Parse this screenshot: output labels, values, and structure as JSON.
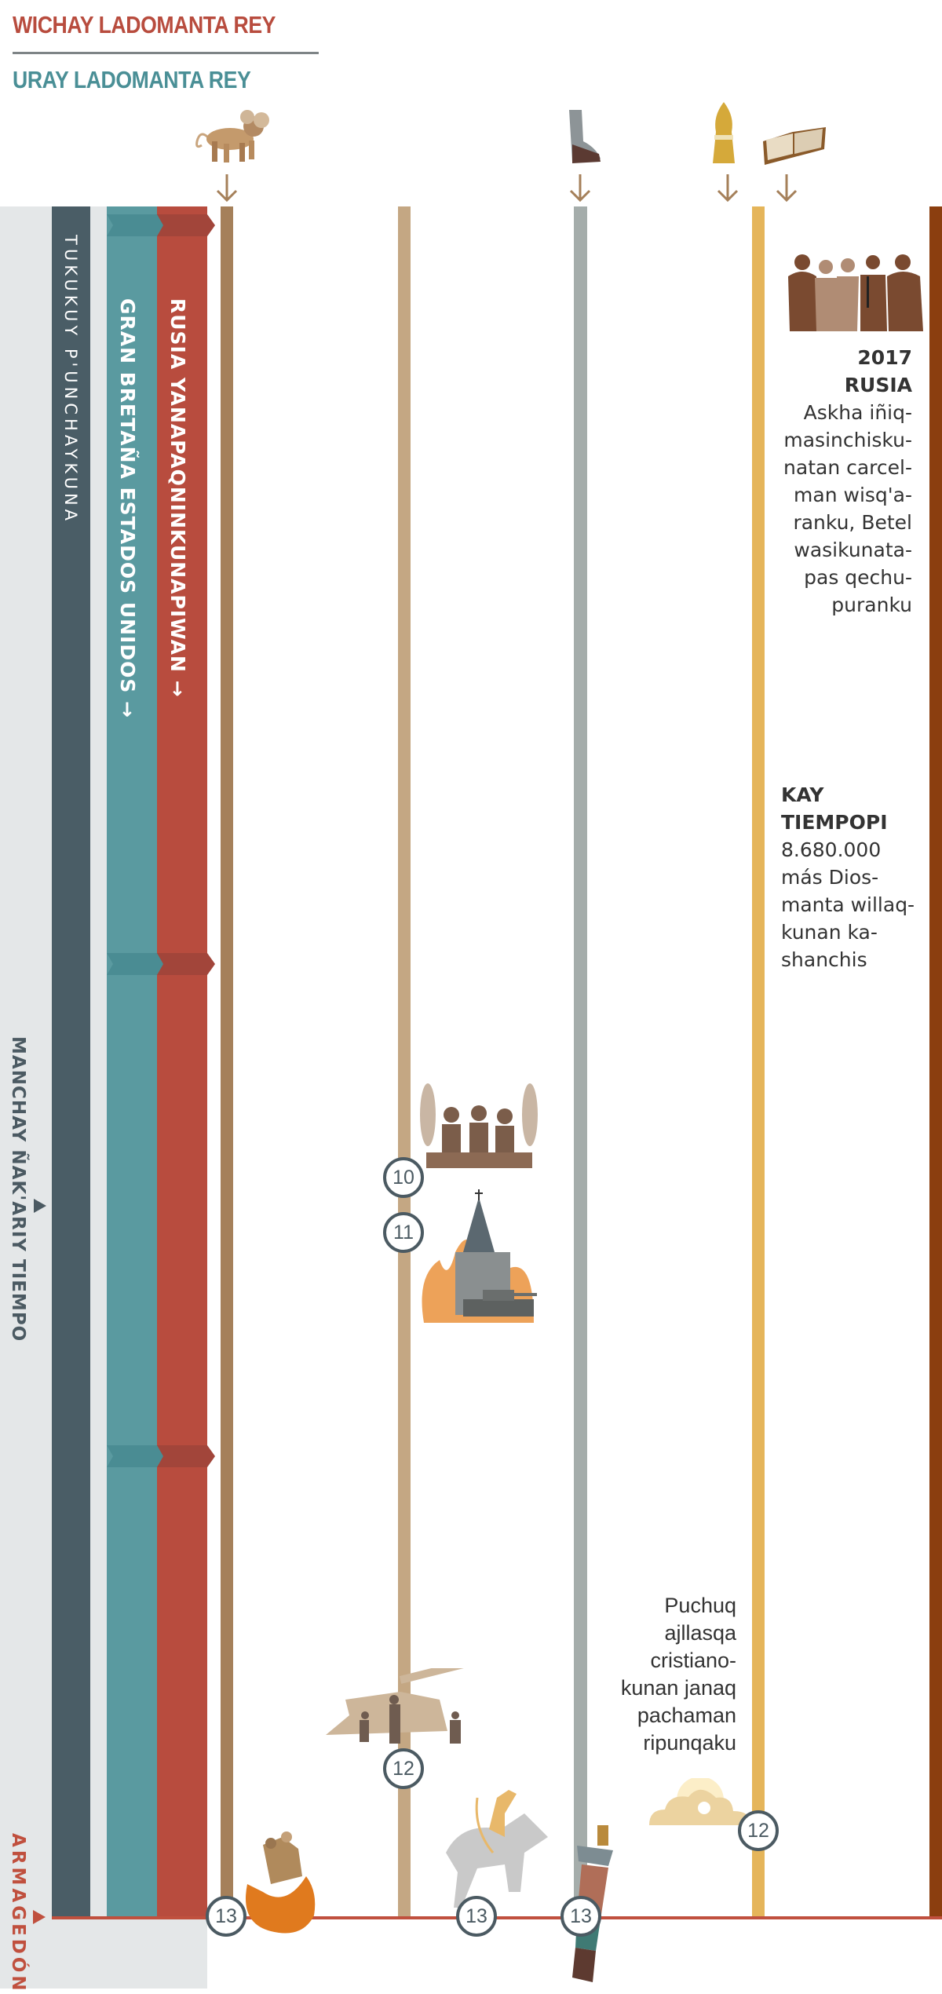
{
  "header": {
    "title_top": "WICHAY LADOMANTA REY",
    "title_bottom": "URAY LADOMANTA REY"
  },
  "colors": {
    "north_king": "#b84c3e",
    "south_king": "#4a8f96",
    "last_days": "#4a5d66",
    "teal_column": "#5a9aa0",
    "red_column": "#b84c3e",
    "panel": "#e4e7e8",
    "armageddon_line": "#c0503e"
  },
  "columns": {
    "last_days": "TUKUKUY P'UNCHAYKUNA",
    "south": "GRAN BRETAÑA ESTADOS UNIDOS →",
    "north": "RUSIA YANAPAQNINKUNAPIWAN →"
  },
  "side_labels": {
    "great_tribulation": "MANCHAY ÑAK'ARIY TIEMPO",
    "armageddon": "ARMAGEDÓN"
  },
  "top_icons": [
    "lion-beast-icon",
    "iron-clay-feet-icon",
    "wheat-sheaf-icon",
    "open-bible-icon"
  ],
  "events": {
    "russia_2017": {
      "heading1": "2017",
      "heading2": "RUSIA",
      "lines": [
        "Askha iñiq-",
        "masinchisku-",
        "natan carcel-",
        "man wisq'a-",
        "ranku, Betel",
        "wasikunata-",
        "pas qechu-",
        "puranku"
      ]
    },
    "today": {
      "heading1": "KAY",
      "heading2": "TIEMPOPI",
      "lines": [
        "8.680.000",
        "más Dios-",
        "manta willaq-",
        "kunan ka-",
        "shanchis"
      ]
    },
    "anointed": {
      "lines": [
        "Puchuq",
        "ajllasqa",
        "cristiano-",
        "kunan janaq",
        "pachaman",
        "ripunqaku"
      ]
    }
  },
  "badges": {
    "b10": "10",
    "b11": "11",
    "b12a": "12",
    "b12b": "12",
    "b13a": "13",
    "b13b": "13",
    "b13c": "13"
  }
}
